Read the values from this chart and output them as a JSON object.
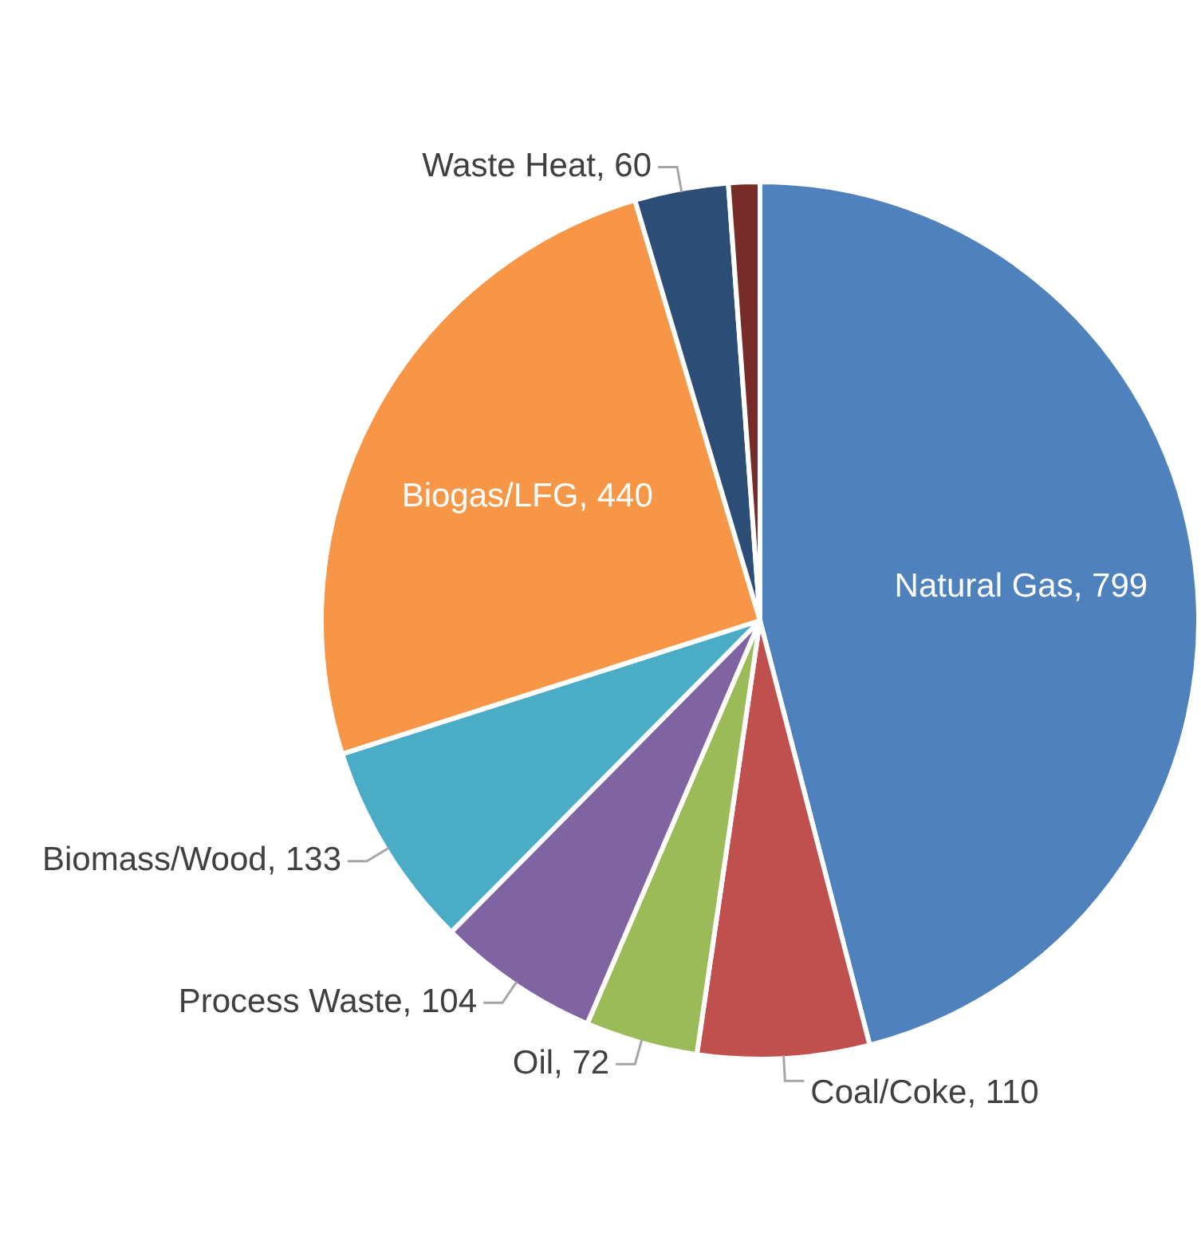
{
  "chart_data": {
    "type": "pie",
    "categories": [
      "Natural Gas",
      "Coal/Coke",
      "Oil",
      "Process Waste",
      "Biomass/Wood",
      "Biogas/LFG",
      "Waste Heat",
      null
    ],
    "values": [
      799,
      110,
      72,
      104,
      133,
      440,
      60,
      20
    ],
    "colors": [
      "#4f81bd",
      "#c0504d",
      "#9bbb59",
      "#8064a2",
      "#4bacc6",
      "#f79646",
      "#2c4d75",
      "#772c2a"
    ],
    "value_labels": [
      "799",
      "110",
      "72",
      "104",
      "133",
      "440",
      "60",
      null
    ],
    "legend": false
  }
}
